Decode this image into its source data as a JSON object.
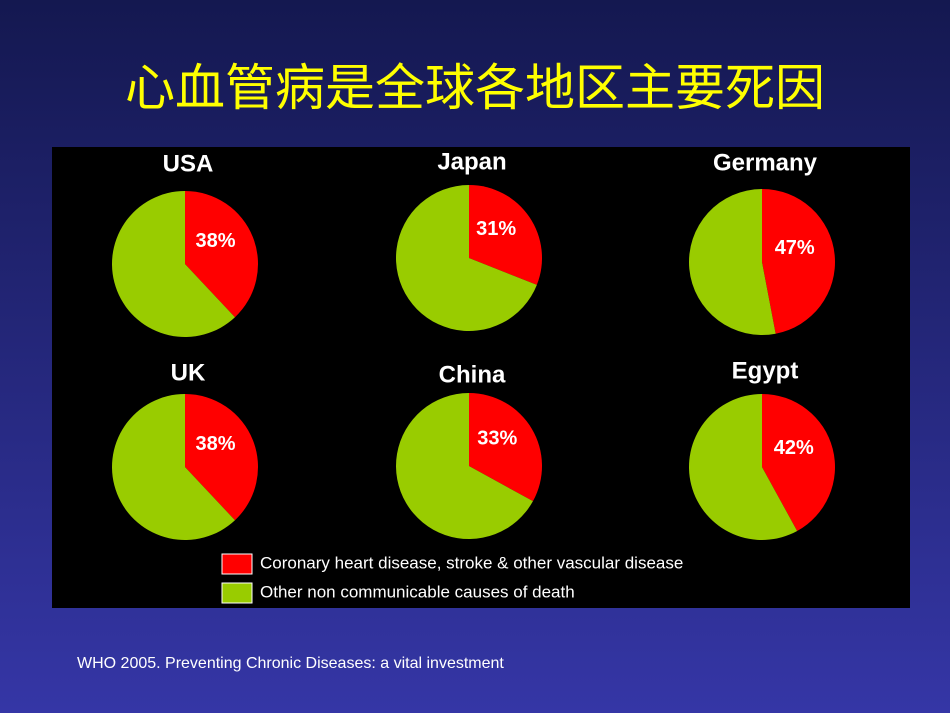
{
  "title": "心血管病是全球各地区主要死因",
  "source": "WHO 2005. Preventing Chronic Diseases: a vital investment",
  "legend": [
    {
      "name": "Coronary heart disease, stroke & other vascular disease",
      "color": "#ff0000"
    },
    {
      "name": "Other non communicable causes of death",
      "color": "#99cc00"
    }
  ],
  "chart_data": [
    {
      "type": "pie",
      "title": "USA",
      "values": [
        38,
        62
      ],
      "value_labels": [
        "38%",
        null
      ]
    },
    {
      "type": "pie",
      "title": "Japan",
      "values": [
        31,
        69
      ],
      "value_labels": [
        "31%",
        null
      ]
    },
    {
      "type": "pie",
      "title": "Germany",
      "values": [
        47,
        53
      ],
      "value_labels": [
        "47%",
        null
      ]
    },
    {
      "type": "pie",
      "title": "UK",
      "values": [
        38,
        62
      ],
      "value_labels": [
        "38%",
        null
      ]
    },
    {
      "type": "pie",
      "title": "China",
      "values": [
        33,
        67
      ],
      "value_labels": [
        "33%",
        null
      ]
    },
    {
      "type": "pie",
      "title": "Egypt",
      "values": [
        42,
        58
      ],
      "value_labels": [
        "42%",
        null
      ]
    }
  ]
}
